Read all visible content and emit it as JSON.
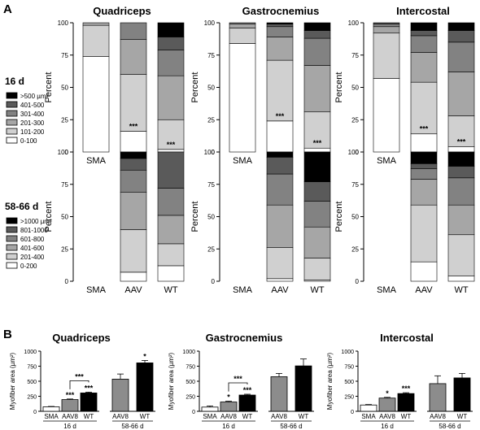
{
  "figure": {
    "panel_a_letter": "A",
    "panel_b_letter": "B"
  },
  "colors": {
    "c0": "#ffffff",
    "c1": "#d0d0d0",
    "c2": "#a6a6a6",
    "c3": "#828282",
    "c4": "#5a5a5a",
    "c5": "#000000",
    "bar_sma": "#ffffff",
    "bar_aav": "#8c8c8c",
    "bar_wt": "#000000"
  },
  "legends": [
    {
      "title": "16 d",
      "entries": [
        "0-100",
        "101-200",
        "201-300",
        "301-400",
        "401-500",
        ">500 µm²"
      ]
    },
    {
      "title": "58-66 d",
      "entries": [
        "0-200",
        "201-400",
        "401-600",
        "601-800",
        "801-1000",
        ">1000 µm²"
      ]
    }
  ],
  "chart_data": [
    {
      "type": "bar",
      "stacked": true,
      "title": "Quadriceps",
      "row": "16 d",
      "categories": [
        "SMA",
        "AAV",
        "WT"
      ],
      "ylabel": "Percent",
      "ylim": [
        0,
        100
      ],
      "yticks": [
        0,
        25,
        50,
        75,
        100
      ],
      "stacks": [
        [
          74,
          24,
          2,
          0,
          0,
          0
        ],
        [
          16,
          44,
          27,
          13,
          0,
          0
        ],
        [
          2,
          23,
          34,
          20,
          10,
          11
        ]
      ],
      "annotations": [
        {
          "category": "AAV",
          "text": "***"
        },
        {
          "category": "WT",
          "text": "***"
        }
      ]
    },
    {
      "type": "bar",
      "stacked": true,
      "title": "Gastrocnemius",
      "row": "16 d",
      "categories": [
        "SMA",
        "AAV",
        "WT"
      ],
      "ylabel": "Percent",
      "ylim": [
        0,
        100
      ],
      "yticks": [
        0,
        25,
        50,
        75,
        100
      ],
      "stacks": [
        [
          84,
          12,
          3,
          1,
          0,
          0
        ],
        [
          24,
          47,
          18,
          8,
          2,
          1
        ],
        [
          3,
          28,
          36,
          21,
          6,
          6
        ]
      ],
      "annotations": [
        {
          "category": "AAV",
          "text": "***"
        },
        {
          "category": "WT",
          "text": "***"
        }
      ]
    },
    {
      "type": "bar",
      "stacked": true,
      "title": "Intercostal",
      "row": "16 d",
      "categories": [
        "SMA",
        "AAV",
        "WT"
      ],
      "ylabel": "Percent",
      "ylim": [
        0,
        100
      ],
      "yticks": [
        0,
        25,
        50,
        75,
        100
      ],
      "stacks": [
        [
          57,
          35,
          5,
          2,
          1,
          0
        ],
        [
          14,
          40,
          23,
          13,
          4,
          6
        ],
        [
          4,
          24,
          34,
          23,
          9,
          6
        ]
      ],
      "annotations": [
        {
          "category": "AAV",
          "text": "***"
        },
        {
          "category": "WT",
          "text": "***"
        }
      ]
    },
    {
      "type": "bar",
      "stacked": true,
      "title": "",
      "row": "58-66 d",
      "categories": [
        "SMA",
        "AAV",
        "WT"
      ],
      "ylabel": "Percent",
      "ylim": [
        0,
        100
      ],
      "yticks": [
        0,
        25,
        50,
        75,
        100
      ],
      "stacks": [
        null,
        [
          7,
          33,
          29,
          17,
          9,
          5
        ],
        [
          12,
          17,
          22,
          21,
          28,
          0
        ]
      ],
      "annotations": []
    },
    {
      "type": "bar",
      "stacked": true,
      "title": "",
      "row": "58-66 d",
      "categories": [
        "SMA",
        "AAV",
        "WT"
      ],
      "ylabel": "Percent",
      "ylim": [
        0,
        100
      ],
      "yticks": [
        0,
        25,
        50,
        75,
        100
      ],
      "stacks": [
        null,
        [
          2,
          24,
          33,
          24,
          13,
          4
        ],
        [
          1,
          17,
          24,
          20,
          15,
          23
        ]
      ],
      "annotations": []
    },
    {
      "type": "bar",
      "stacked": true,
      "title": "",
      "row": "58-66 d",
      "categories": [
        "SMA",
        "AAV",
        "WT"
      ],
      "ylabel": "Percent",
      "ylim": [
        0,
        100
      ],
      "yticks": [
        0,
        25,
        50,
        75,
        100
      ],
      "stacks": [
        null,
        [
          15,
          44,
          20,
          8,
          4,
          9
        ],
        [
          4,
          32,
          23,
          21,
          9,
          11
        ]
      ],
      "annotations": []
    },
    {
      "type": "bar",
      "title": "Quadriceps",
      "ylabel": "Myofiber area (µm²)",
      "ylim": [
        0,
        1000
      ],
      "yticks": [
        0,
        250,
        500,
        750,
        1000
      ],
      "groups": [
        {
          "label": "16 d",
          "bars": [
            {
              "category": "SMA",
              "value": 75,
              "error": 6,
              "sig": ""
            },
            {
              "category": "AAV8",
              "value": 195,
              "error": 10,
              "sig": "***"
            },
            {
              "category": "WT",
              "value": 305,
              "error": 14,
              "sig": "***"
            }
          ]
        },
        {
          "label": "58-66 d",
          "bars": [
            {
              "category": "AAV8",
              "value": 535,
              "error": 85,
              "sig": ""
            },
            {
              "category": "WT",
              "value": 805,
              "error": 40,
              "sig": "*"
            }
          ]
        }
      ],
      "bracket": {
        "from": "AAV8",
        "to": "WT",
        "sig": "***"
      }
    },
    {
      "type": "bar",
      "title": "Gastrocnemius",
      "ylabel": "Myofiber area (µm²)",
      "ylim": [
        0,
        1000
      ],
      "yticks": [
        0,
        250,
        500,
        750,
        1000
      ],
      "groups": [
        {
          "label": "16 d",
          "bars": [
            {
              "category": "SMA",
              "value": 70,
              "error": 18,
              "sig": ""
            },
            {
              "category": "AAV8",
              "value": 155,
              "error": 12,
              "sig": "*"
            },
            {
              "category": "WT",
              "value": 270,
              "error": 14,
              "sig": "***"
            }
          ]
        },
        {
          "label": "58-66 d",
          "bars": [
            {
              "category": "AAV8",
              "value": 575,
              "error": 55,
              "sig": ""
            },
            {
              "category": "WT",
              "value": 755,
              "error": 115,
              "sig": ""
            }
          ]
        }
      ],
      "bracket": {
        "from": "AAV8",
        "to": "WT",
        "sig": "***"
      }
    },
    {
      "type": "bar",
      "title": "Intercostal",
      "ylabel": "Myofiber area (µm²)",
      "ylim": [
        0,
        1000
      ],
      "yticks": [
        0,
        250,
        500,
        750,
        1000
      ],
      "groups": [
        {
          "label": "16 d",
          "bars": [
            {
              "category": "SMA",
              "value": 105,
              "error": 8,
              "sig": ""
            },
            {
              "category": "AAV8",
              "value": 220,
              "error": 12,
              "sig": "*"
            },
            {
              "category": "WT",
              "value": 295,
              "error": 14,
              "sig": "***"
            }
          ]
        },
        {
          "label": "58-66 d",
          "bars": [
            {
              "category": "AAV8",
              "value": 460,
              "error": 130,
              "sig": ""
            },
            {
              "category": "WT",
              "value": 555,
              "error": 75,
              "sig": ""
            }
          ]
        }
      ],
      "bracket": null
    }
  ]
}
